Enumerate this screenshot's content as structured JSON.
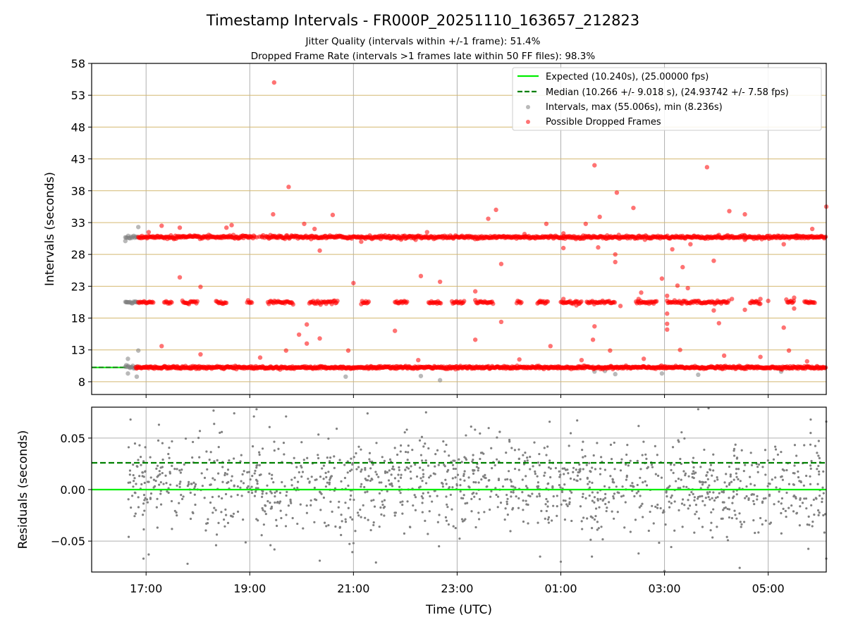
{
  "chart_data": [
    {
      "type": "scatter",
      "title": "Timestamp Intervals - FR000P_20251110_163657_212823",
      "subtitle_lines": [
        "Jitter Quality (intervals within +/-1 frame): 51.4%",
        "Dropped Frame Rate (intervals >1 frames late within 50 FF files): 98.3%"
      ],
      "xlabel": "",
      "ylabel": "Intervals (seconds)",
      "x_time_range_hours": [
        15.95,
        30.12
      ],
      "ylim": [
        6,
        58
      ],
      "yticks": [
        "8",
        "13",
        "18",
        "23",
        "28",
        "33",
        "38",
        "43",
        "48",
        "53",
        "58"
      ],
      "grid": true,
      "legend_position": "top-right",
      "legend": [
        "Expected (10.240s), (25.00000 fps)",
        "Median (10.266 +/- 9.018 s), (24.93742 +/- 7.58 fps)",
        "Intervals, max (55.006s), min (8.236s)",
        "Possible Dropped Frames"
      ],
      "expected_interval_s": 10.24,
      "median_interval_s": 10.266,
      "interval_bands_s": [
        10.24,
        20.48,
        30.72
      ],
      "series": [
        {
          "name": "Possible Dropped Frames",
          "color": "#ff0000",
          "points": [
            [
              19.47,
              55.0
            ],
            [
              19.75,
              38.6
            ],
            [
              21.0,
              23.5
            ],
            [
              21.8,
              16.0
            ],
            [
              22.3,
              24.6
            ],
            [
              22.67,
              23.7
            ],
            [
              23.75,
              35.0
            ],
            [
              23.85,
              26.5
            ],
            [
              24.72,
              32.8
            ],
            [
              25.65,
              42.0
            ],
            [
              25.75,
              33.9
            ],
            [
              26.08,
              37.7
            ],
            [
              26.4,
              35.3
            ],
            [
              26.55,
              22.0
            ],
            [
              26.95,
              24.2
            ],
            [
              27.35,
              26.0
            ],
            [
              27.82,
              41.7
            ],
            [
              27.95,
              27.0
            ],
            [
              28.05,
              17.2
            ],
            [
              28.25,
              34.8
            ],
            [
              28.55,
              34.3
            ],
            [
              29.3,
              16.5
            ],
            [
              29.85,
              32.0
            ],
            [
              30.12,
              35.5
            ],
            [
              19.2,
              11.8
            ],
            [
              20.1,
              17.0
            ],
            [
              20.35,
              14.8
            ],
            [
              17.65,
              24.4
            ],
            [
              18.05,
              22.9
            ],
            [
              17.05,
              31.5
            ],
            [
              17.3,
              32.5
            ],
            [
              17.65,
              32.2
            ],
            [
              18.55,
              32.2
            ],
            [
              18.65,
              32.6
            ],
            [
              19.45,
              34.3
            ],
            [
              20.6,
              34.2
            ],
            [
              20.25,
              32.0
            ],
            [
              20.05,
              32.8
            ],
            [
              20.35,
              28.6
            ],
            [
              21.15,
              30.0
            ],
            [
              22.2,
              30.3
            ],
            [
              22.42,
              31.5
            ],
            [
              23.6,
              33.6
            ],
            [
              24.3,
              31.2
            ],
            [
              25.05,
              31.3
            ],
            [
              25.05,
              29.0
            ],
            [
              25.48,
              32.8
            ],
            [
              25.72,
              29.1
            ],
            [
              26.05,
              26.8
            ],
            [
              26.05,
              28.0
            ],
            [
              27.15,
              28.8
            ],
            [
              27.5,
              29.6
            ],
            [
              28.55,
              30.3
            ],
            [
              29.3,
              29.6
            ],
            [
              29.55,
              30.9
            ],
            [
              17.3,
              13.6
            ],
            [
              18.05,
              12.3
            ],
            [
              19.7,
              12.9
            ],
            [
              19.95,
              15.4
            ],
            [
              20.1,
              14.0
            ],
            [
              20.9,
              12.9
            ],
            [
              22.25,
              11.4
            ],
            [
              23.35,
              14.6
            ],
            [
              24.2,
              11.5
            ],
            [
              24.8,
              13.6
            ],
            [
              25.4,
              11.4
            ],
            [
              25.95,
              12.9
            ],
            [
              26.6,
              11.6
            ],
            [
              27.3,
              13.0
            ],
            [
              28.15,
              12.1
            ],
            [
              28.85,
              11.9
            ],
            [
              29.4,
              12.9
            ],
            [
              29.75,
              11.2
            ],
            [
              23.35,
              22.2
            ],
            [
              23.85,
              17.4
            ],
            [
              24.6,
              20.7
            ],
            [
              25.05,
              21.0
            ],
            [
              25.3,
              20.0
            ],
            [
              25.62,
              14.6
            ],
            [
              25.65,
              16.7
            ],
            [
              26.15,
              19.9
            ],
            [
              26.5,
              21.0
            ],
            [
              27.05,
              21.5
            ],
            [
              27.05,
              18.7
            ],
            [
              27.05,
              17.1
            ],
            [
              27.05,
              16.2
            ],
            [
              27.25,
              23.1
            ],
            [
              27.45,
              22.7
            ],
            [
              27.95,
              19.2
            ],
            [
              28.3,
              21.0
            ],
            [
              28.55,
              19.3
            ],
            [
              28.85,
              21.0
            ],
            [
              29.0,
              20.7
            ],
            [
              29.5,
              21.2
            ],
            [
              29.5,
              19.5
            ]
          ]
        },
        {
          "name": "Intervals, max (55.006s), min (8.236s)",
          "color": "#808080",
          "points": [
            [
              16.6,
              30.1
            ],
            [
              16.62,
              20.5
            ],
            [
              16.65,
              11.6
            ],
            [
              16.65,
              9.3
            ],
            [
              16.82,
              8.8
            ],
            [
              16.85,
              32.3
            ],
            [
              16.85,
              12.9
            ],
            [
              20.85,
              8.8
            ],
            [
              22.3,
              8.9
            ],
            [
              22.67,
              8.24
            ],
            [
              25.65,
              9.6
            ],
            [
              25.85,
              9.7
            ],
            [
              26.05,
              9.2
            ],
            [
              26.95,
              9.3
            ],
            [
              27.65,
              9.1
            ],
            [
              29.25,
              9.6
            ]
          ]
        }
      ]
    },
    {
      "type": "scatter",
      "title": "",
      "xlabel": "Time (UTC)",
      "ylabel": "Residuals (seconds)",
      "ylim": [
        -0.08,
        0.08
      ],
      "yticks": [
        "−0.05",
        "0.00",
        "0.05"
      ],
      "xticks": [
        "17:00",
        "19:00",
        "21:00",
        "23:00",
        "01:00",
        "03:00",
        "05:00"
      ],
      "expected_residual": 0.0,
      "median_residual": 0.026,
      "series_color": "#808080",
      "extremes": [
        [
          16.7,
          0.068
        ],
        [
          18.7,
          0.074
        ],
        [
          19.08,
          0.071
        ],
        [
          19.7,
          0.071
        ],
        [
          22.4,
          0.075
        ],
        [
          27.65,
          0.078
        ],
        [
          27.85,
          0.079
        ],
        [
          29.82,
          0.068
        ],
        [
          30.12,
          0.066
        ],
        [
          16.95,
          -0.067
        ],
        [
          17.05,
          -0.063
        ],
        [
          17.8,
          -0.072
        ],
        [
          18.35,
          -0.054
        ],
        [
          19.4,
          -0.054
        ],
        [
          20.35,
          -0.069
        ],
        [
          21.0,
          -0.052
        ],
        [
          22.65,
          -0.055
        ],
        [
          24.6,
          -0.065
        ],
        [
          25.0,
          -0.07
        ],
        [
          25.6,
          -0.065
        ],
        [
          26.5,
          -0.062
        ],
        [
          27.0,
          -0.079
        ],
        [
          28.45,
          -0.076
        ],
        [
          30.12,
          -0.067
        ]
      ]
    }
  ]
}
